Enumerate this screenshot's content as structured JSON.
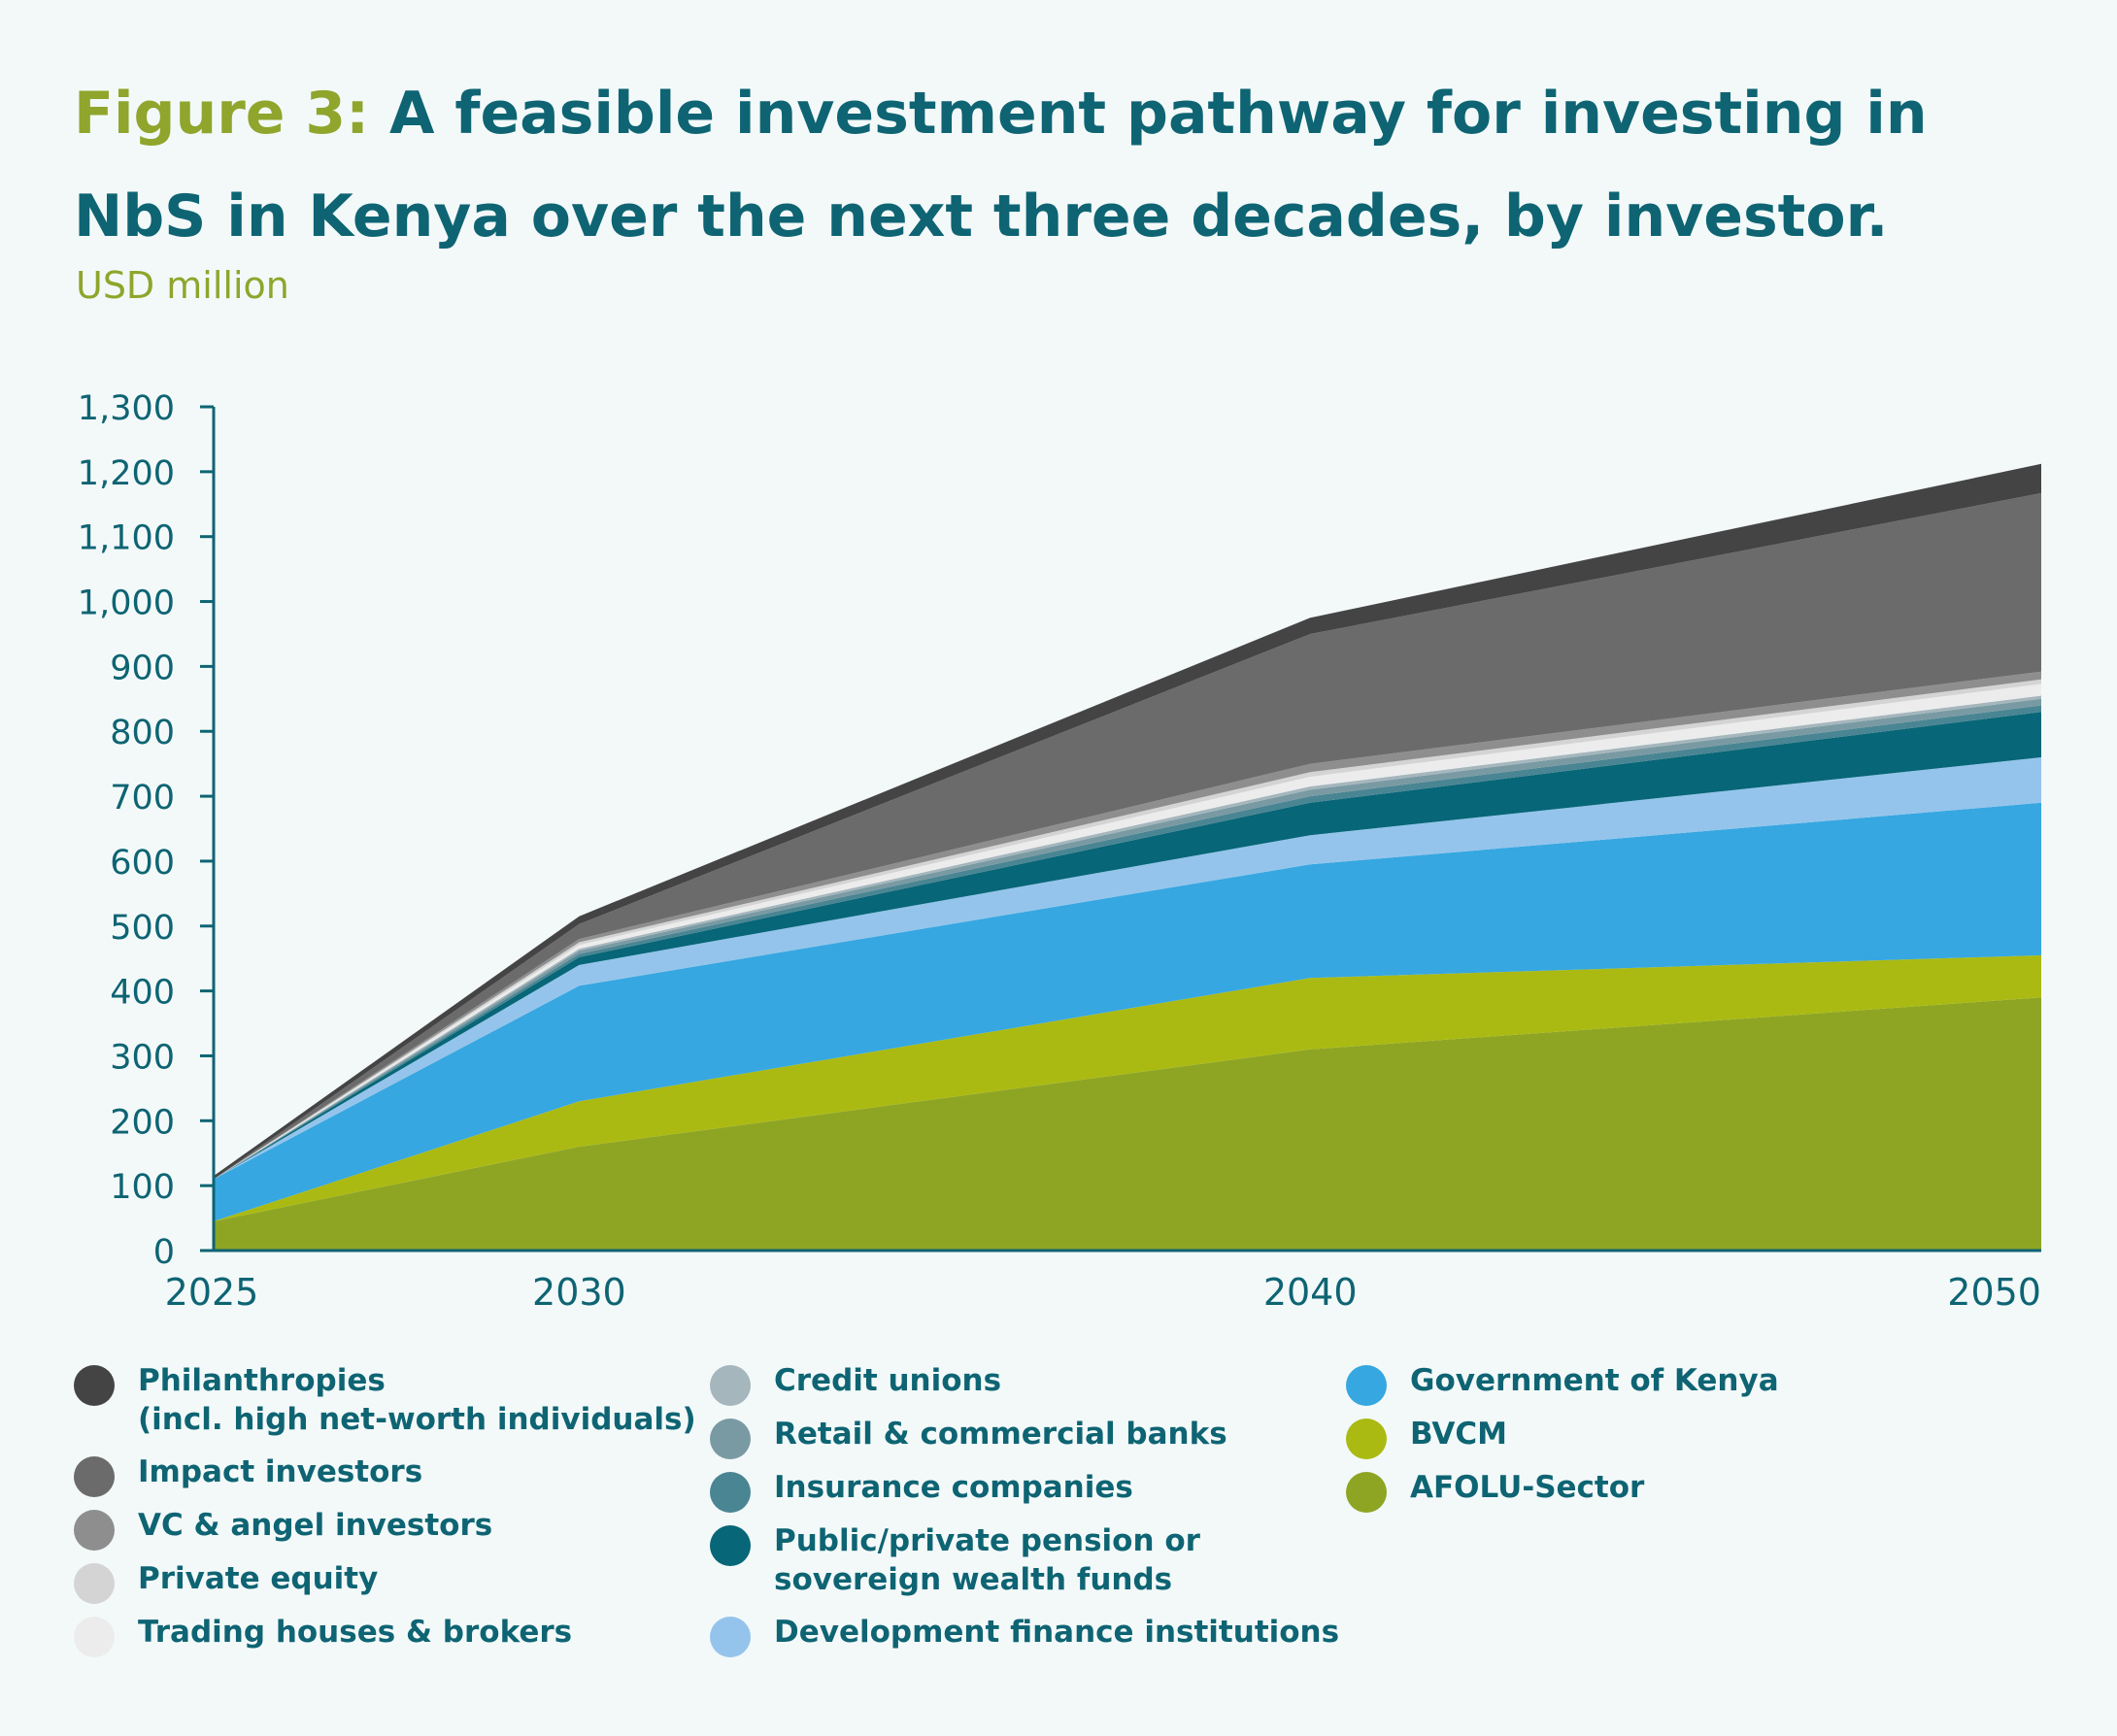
{
  "header": {
    "figure_label": "Figure 3:",
    "title": "A feasible investment pathway for investing in NbS in Kenya over the next three decades, by investor."
  },
  "unit_label": "USD million",
  "chart_data": {
    "type": "area",
    "stacked": true,
    "x": [
      2025,
      2030,
      2040,
      2050
    ],
    "xticks": [
      "2025",
      "2030",
      "2040",
      "2050"
    ],
    "ylim": [
      0,
      1300
    ],
    "yticks": [
      "0",
      "100",
      "200",
      "300",
      "400",
      "500",
      "600",
      "700",
      "800",
      "900",
      "1,000",
      "1,100",
      "1,200",
      "1,300"
    ],
    "ytick_values": [
      0,
      100,
      200,
      300,
      400,
      500,
      600,
      700,
      800,
      900,
      1000,
      1100,
      1200,
      1300
    ],
    "grid": false,
    "legend_position": "bottom",
    "series": [
      {
        "name": "AFOLU-Sector",
        "color": "#8ea524",
        "values": [
          45,
          160,
          310,
          390
        ]
      },
      {
        "name": "BVCM",
        "color": "#abba12",
        "values": [
          0,
          70,
          110,
          65
        ]
      },
      {
        "name": "Government of Kenya",
        "color": "#36a7e0",
        "values": [
          65,
          178,
          175,
          235
        ]
      },
      {
        "name": "Development finance institutions",
        "color": "#94c4ec",
        "values": [
          0,
          32,
          45,
          70
        ]
      },
      {
        "name": "Public/private pension or sovereign wealth funds",
        "color": "#076677",
        "values": [
          0,
          12,
          50,
          70
        ]
      },
      {
        "name": "Insurance companies",
        "color": "#4a8593",
        "values": [
          0,
          5,
          10,
          10
        ]
      },
      {
        "name": "Retail & commercial banks",
        "color": "#7a9aa3",
        "values": [
          0,
          5,
          10,
          10
        ]
      },
      {
        "name": "Credit unions",
        "color": "#a5b6bd",
        "values": [
          0,
          3,
          5,
          5
        ]
      },
      {
        "name": "Trading houses & brokers",
        "color": "#ececec",
        "values": [
          0,
          6,
          15,
          18
        ]
      },
      {
        "name": "Private equity",
        "color": "#d4d4d4",
        "values": [
          0,
          4,
          7,
          7
        ]
      },
      {
        "name": "VC & angel investors",
        "color": "#8e8e8e",
        "values": [
          0,
          5,
          13,
          12
        ]
      },
      {
        "name": "Impact investors",
        "color": "#6c6b6b",
        "values": [
          0,
          23,
          200,
          275
        ]
      },
      {
        "name": "Philanthropies (incl. high net-worth individuals)",
        "color": "#454445",
        "values": [
          5,
          12,
          25,
          45
        ]
      }
    ]
  },
  "legend": {
    "col1": [
      {
        "lines": [
          "Philanthropies",
          "(incl. high net-worth individuals)"
        ],
        "color": "#454445"
      },
      {
        "lines": [
          "Impact investors"
        ],
        "color": "#6c6b6b"
      },
      {
        "lines": [
          "VC & angel investors"
        ],
        "color": "#8e8e8e"
      },
      {
        "lines": [
          "Private equity"
        ],
        "color": "#d4d4d4"
      },
      {
        "lines": [
          "Trading houses & brokers"
        ],
        "color": "#ececec"
      }
    ],
    "col2": [
      {
        "lines": [
          "Credit unions"
        ],
        "color": "#a5b6bd"
      },
      {
        "lines": [
          "Retail & commercial banks"
        ],
        "color": "#7a9aa3"
      },
      {
        "lines": [
          "Insurance companies"
        ],
        "color": "#4a8593"
      },
      {
        "lines": [
          "Public/private pension or",
          "sovereign wealth funds"
        ],
        "color": "#076677"
      },
      {
        "lines": [
          "Development finance institutions"
        ],
        "color": "#94c4ec"
      }
    ],
    "col3": [
      {
        "lines": [
          "Government of Kenya"
        ],
        "color": "#36a7e0"
      },
      {
        "lines": [
          "BVCM"
        ],
        "color": "#abba12"
      },
      {
        "lines": [
          "AFOLU-Sector"
        ],
        "color": "#8ea524"
      }
    ]
  }
}
